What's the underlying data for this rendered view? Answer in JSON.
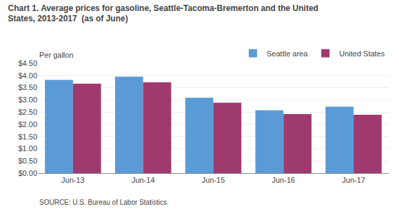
{
  "chart_data": {
    "type": "bar",
    "title": "Chart 1. Average prices for gasoline, Seattle-Tacoma-Bremerton and the United\nStates, 2013-2017  (as of June)",
    "ylabel": "Per gallon",
    "source": "SOURCE: U.S. Bureau of Labor Statistics.",
    "categories": [
      "Jun-13",
      "Jun-14",
      "Jun-15",
      "Jun-16",
      "Jun-17"
    ],
    "series": [
      {
        "name": "Seattle area",
        "color": "#5B9BD5",
        "values": [
          3.82,
          3.95,
          3.09,
          2.57,
          2.72
        ]
      },
      {
        "name": "United States",
        "color": "#9E3A6E",
        "values": [
          3.66,
          3.72,
          2.88,
          2.42,
          2.39
        ]
      }
    ],
    "ylim": [
      0,
      4.5
    ],
    "yticks": [
      {
        "value": 0.0,
        "label": "$0.00"
      },
      {
        "value": 0.5,
        "label": "$0.50"
      },
      {
        "value": 1.0,
        "label": "$1.00"
      },
      {
        "value": 1.5,
        "label": "$1.50"
      },
      {
        "value": 2.0,
        "label": "$2.00"
      },
      {
        "value": 2.5,
        "label": "$2.50"
      },
      {
        "value": 3.0,
        "label": "$3.00"
      },
      {
        "value": 3.5,
        "label": "$3.50"
      },
      {
        "value": 4.0,
        "label": "$4.00"
      },
      {
        "value": 4.5,
        "label": "$4.50"
      }
    ],
    "grid": true,
    "legend": "upper right"
  }
}
